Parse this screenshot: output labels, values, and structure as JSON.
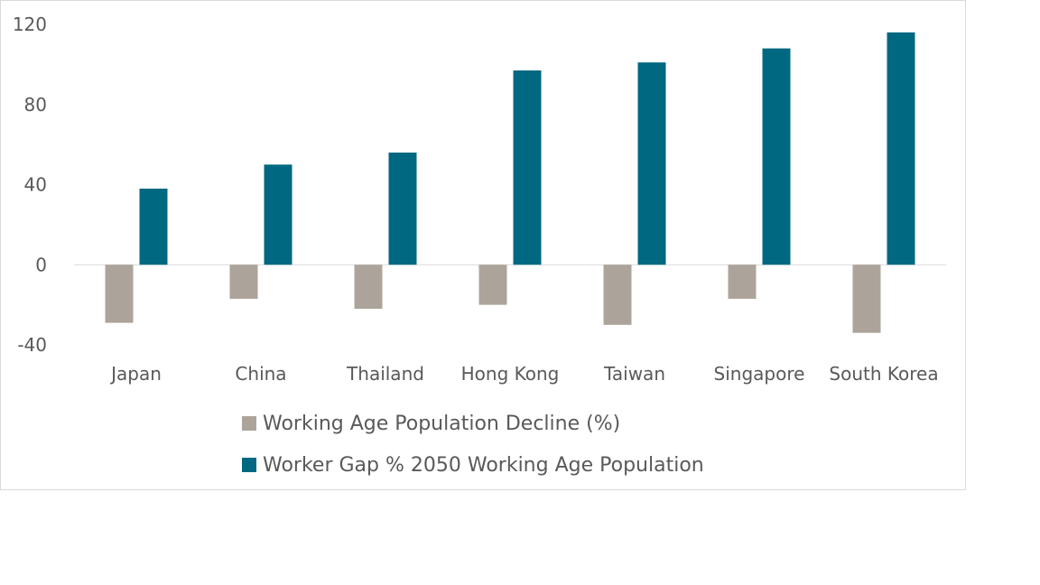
{
  "colors": {
    "decline": "#aca49b",
    "gap": "#006881",
    "axis_text": "#595959",
    "zero_line": "#d9d9d9"
  },
  "chart_data": {
    "type": "bar",
    "title": "",
    "xlabel": "",
    "ylabel": "",
    "ylim": [
      -40,
      120
    ],
    "yticks": [
      -40,
      0,
      40,
      80,
      120
    ],
    "grid": false,
    "legend_position": "bottom",
    "categories": [
      "Japan",
      "China",
      "Thailand",
      "Hong Kong",
      "Taiwan",
      "Singapore",
      "South Korea"
    ],
    "series": [
      {
        "name": "Working Age Population Decline (%)",
        "color": "#aca49b",
        "values": [
          -29,
          -17,
          -22,
          -20,
          -30,
          -17,
          -34
        ]
      },
      {
        "name": "Worker Gap % 2050 Working Age Population",
        "color": "#006881",
        "values": [
          38,
          50,
          56,
          97,
          101,
          108,
          116
        ]
      }
    ]
  }
}
